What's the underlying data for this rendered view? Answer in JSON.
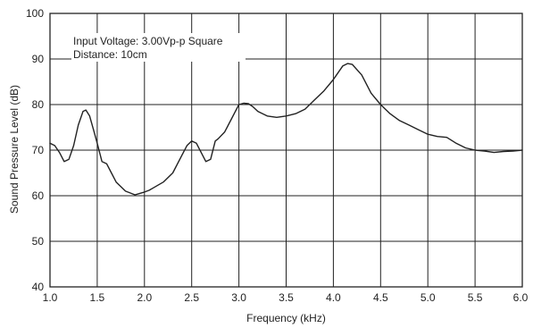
{
  "chart_data": {
    "type": "line",
    "title": "",
    "xlabel": "Frequency (kHz)",
    "ylabel": "Sound Pressure Level (dB)",
    "xlim": [
      1.0,
      6.0
    ],
    "ylim": [
      40,
      100
    ],
    "x_ticks": [
      "1.0",
      "1.5",
      "2.0",
      "2.5",
      "3.0",
      "3.5",
      "4.0",
      "4.5",
      "5.0",
      "5.5",
      "6.0"
    ],
    "y_ticks": [
      "40",
      "50",
      "60",
      "70",
      "80",
      "90",
      "100"
    ],
    "grid": true,
    "annotations": [
      "Input Voltage: 3.00Vp-p Square",
      "Distance: 10cm"
    ],
    "line_color": "#222222",
    "series": [
      {
        "x": [
          1.0,
          1.05,
          1.1,
          1.15,
          1.2,
          1.25,
          1.3,
          1.35,
          1.38,
          1.42,
          1.46,
          1.5,
          1.55,
          1.6,
          1.65,
          1.7,
          1.8,
          1.9,
          1.95,
          2.0,
          2.05,
          2.1,
          2.2,
          2.3,
          2.4,
          2.45,
          2.5,
          2.55,
          2.6,
          2.65,
          2.7,
          2.75,
          2.78,
          2.85,
          2.95,
          3.0,
          3.05,
          3.1,
          3.15,
          3.2,
          3.3,
          3.4,
          3.5,
          3.6,
          3.7,
          3.8,
          3.9,
          4.0,
          4.05,
          4.1,
          4.15,
          4.2,
          4.3,
          4.4,
          4.5,
          4.6,
          4.7,
          4.8,
          4.9,
          5.0,
          5.1,
          5.2,
          5.3,
          5.4,
          5.5,
          5.6,
          5.7,
          5.8,
          5.9,
          6.0
        ],
        "y": [
          71.5,
          71.0,
          69.5,
          67.5,
          68.0,
          71.0,
          75.5,
          78.5,
          78.8,
          77.5,
          74.5,
          71.5,
          67.5,
          67.0,
          65.0,
          63.0,
          61.0,
          60.2,
          60.5,
          60.8,
          61.2,
          61.8,
          63.0,
          65.0,
          69.0,
          71.0,
          72.0,
          71.5,
          69.5,
          67.5,
          68.0,
          72.0,
          72.5,
          74.0,
          78.0,
          80.0,
          80.3,
          80.2,
          79.5,
          78.5,
          77.5,
          77.2,
          77.5,
          78.0,
          79.0,
          81.0,
          83.0,
          85.5,
          87.0,
          88.5,
          89.0,
          88.8,
          86.5,
          82.5,
          80.0,
          78.0,
          76.5,
          75.5,
          74.5,
          73.5,
          73.0,
          72.8,
          71.5,
          70.5,
          70.0,
          69.8,
          69.5,
          69.7,
          69.8,
          70.0
        ]
      }
    ]
  }
}
